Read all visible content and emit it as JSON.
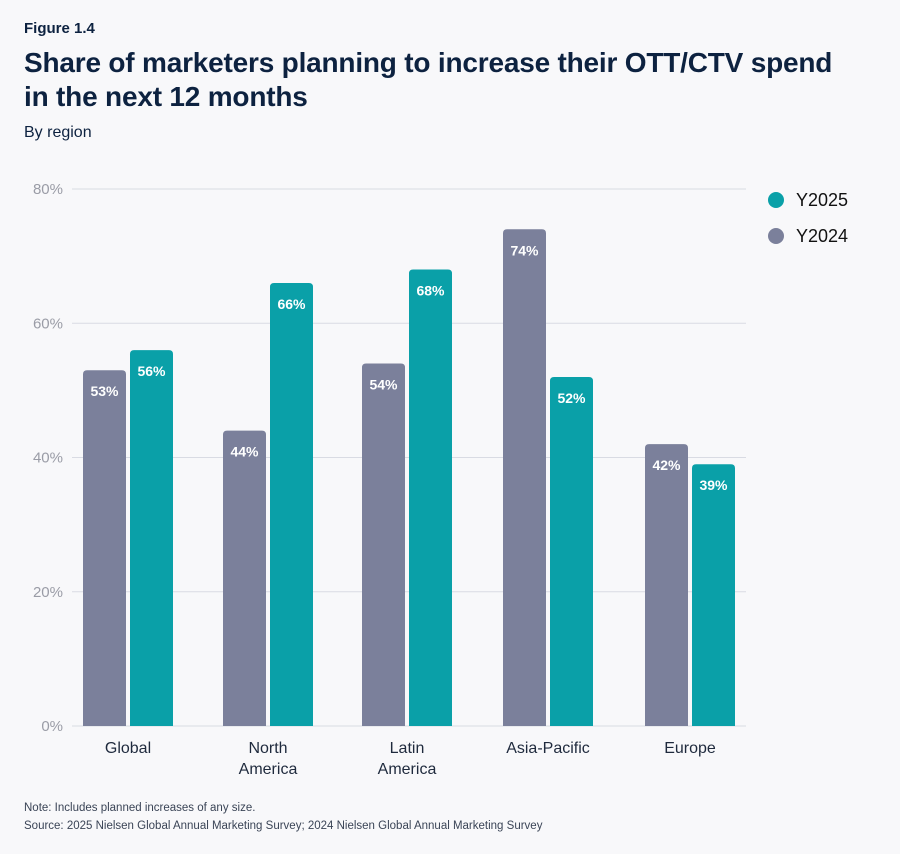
{
  "figure_label": "Figure 1.4",
  "title": "Share of marketers planning to increase their OTT/CTV spend in the next 12 months",
  "subtitle": "By region",
  "note": "Note: Includes planned increases of any size.",
  "source": "Source: 2025 Nielsen Global Annual Marketing Survey; 2024 Nielsen Global Annual Marketing Survey",
  "colors": {
    "Y2025": "#0aa0a8",
    "Y2024": "#7b809b",
    "grid": "#d9dbe3"
  },
  "chart_data": {
    "type": "bar",
    "categories": [
      [
        "Global"
      ],
      [
        "North",
        "America"
      ],
      [
        "Latin",
        "America"
      ],
      [
        "Asia-Pacific"
      ],
      [
        "Europe"
      ]
    ],
    "series": [
      {
        "name": "Y2024",
        "values": [
          53,
          44,
          54,
          74,
          42
        ],
        "labels": [
          "53%",
          "44%",
          "54%",
          "74%",
          "42%"
        ]
      },
      {
        "name": "Y2025",
        "values": [
          56,
          66,
          68,
          52,
          39
        ],
        "labels": [
          "56%",
          "66%",
          "68%",
          "52%",
          "39%"
        ]
      }
    ],
    "legend": [
      {
        "name": "Y2025"
      },
      {
        "name": "Y2024"
      }
    ],
    "legend_position": "top-right",
    "ylim": [
      0,
      80
    ],
    "yticks": [
      0,
      20,
      40,
      60,
      80
    ],
    "ytick_labels": [
      "0%",
      "20%",
      "40%",
      "60%",
      "80%"
    ],
    "grid": true,
    "xlabel": "",
    "ylabel": ""
  }
}
